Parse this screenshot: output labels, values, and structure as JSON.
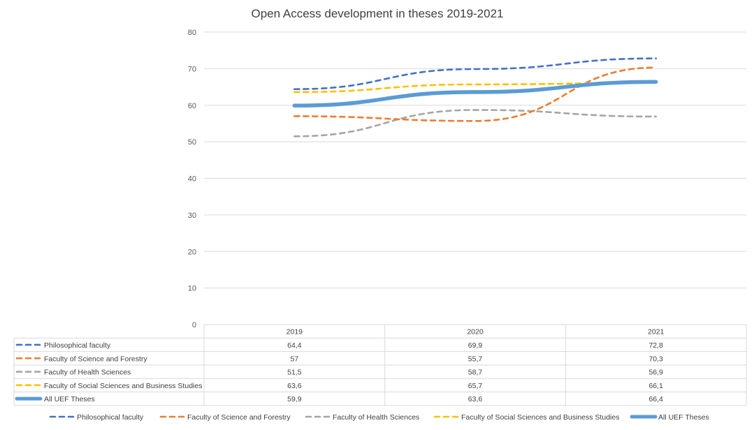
{
  "chart_data": {
    "type": "line",
    "title": "Open Access development in theses 2019-2021",
    "xlabel": "",
    "ylabel": "",
    "categories": [
      "2019",
      "2020",
      "2021"
    ],
    "ylim": [
      0,
      80
    ],
    "yticks": [
      0,
      10,
      20,
      30,
      40,
      50,
      60,
      70,
      80
    ],
    "grid": true,
    "legend_position": "bottom",
    "data_table": true,
    "series": [
      {
        "name": "Philosophical faculty",
        "values": [
          64.4,
          69.9,
          72.8
        ],
        "labels": [
          "64,4",
          "69,9",
          "72,8"
        ],
        "color": "#4472C4",
        "style": "dashed"
      },
      {
        "name": "Faculty of Science and Forestry",
        "values": [
          57,
          55.7,
          70.3
        ],
        "labels": [
          "57",
          "55,7",
          "70,3"
        ],
        "color": "#ED7D31",
        "style": "dashed"
      },
      {
        "name": "Faculty of Health Sciences",
        "values": [
          51.5,
          58.7,
          56.9
        ],
        "labels": [
          "51,5",
          "58,7",
          "56,9"
        ],
        "color": "#A5A5A5",
        "style": "dashed"
      },
      {
        "name": "Faculty of Social Sciences and Business Studies",
        "values": [
          63.6,
          65.7,
          66.1
        ],
        "labels": [
          "63,6",
          "65,7",
          "66,1"
        ],
        "color": "#FFC000",
        "style": "dashed"
      },
      {
        "name": "All UEF Theses",
        "values": [
          59.9,
          63.6,
          66.4
        ],
        "labels": [
          "59,9",
          "63,6",
          "66,4"
        ],
        "color": "#5B9BD5",
        "style": "solid"
      }
    ]
  }
}
